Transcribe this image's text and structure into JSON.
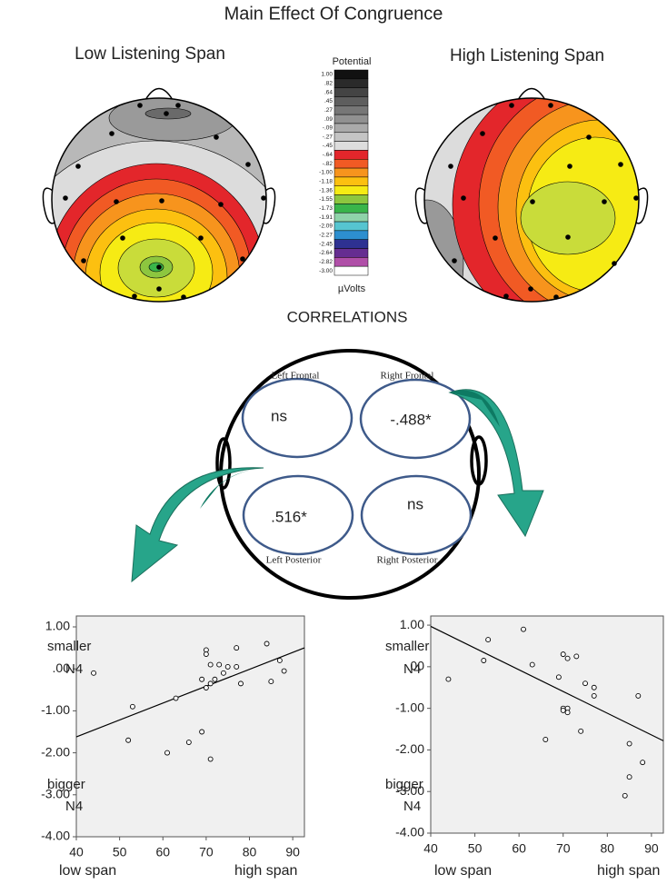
{
  "title": "Main Effect Of Congruence",
  "maps": {
    "left_title": "Low Listening Span",
    "right_title": "High Listening Span"
  },
  "diagram": {
    "title": "CORRELATIONS",
    "regions": [
      {
        "name": "Left Frontal",
        "value": "ns"
      },
      {
        "name": "Right Frontal",
        "value": "-.488*"
      },
      {
        "name": "Left Posterior",
        "value": ".516*"
      },
      {
        "name": "Right Posterior",
        "value": "ns"
      }
    ]
  },
  "chart_data": [
    {
      "type": "colorbar",
      "title": "Potential",
      "unit": "µVolts",
      "ticks": [
        {
          "value": 1,
          "label": "1.00"
        },
        {
          "value": 0.82,
          "label": ".82"
        },
        {
          "value": 0.64,
          "label": ".64"
        },
        {
          "value": 0.45,
          "label": ".45"
        },
        {
          "value": 0.27,
          "label": ".27"
        },
        {
          "value": 0.09,
          "label": ".09"
        },
        {
          "value": -0.09,
          "label": "-.09"
        },
        {
          "value": -0.27,
          "label": "-.27"
        },
        {
          "value": -0.45,
          "label": "-.45"
        },
        {
          "value": -0.64,
          "label": "-.64"
        },
        {
          "value": -0.82,
          "label": "-.82"
        },
        {
          "value": -1,
          "label": "-1.00"
        },
        {
          "value": -1.18,
          "label": "-1.18"
        },
        {
          "value": -1.36,
          "label": "-1.36"
        },
        {
          "value": -1.55,
          "label": "-1.55"
        },
        {
          "value": -1.73,
          "label": "-1.73"
        },
        {
          "value": -1.91,
          "label": "-1.91"
        },
        {
          "value": -2.09,
          "label": "-2.09"
        },
        {
          "value": -2.27,
          "label": "-2.27"
        },
        {
          "value": -2.45,
          "label": "-2.45"
        },
        {
          "value": -2.64,
          "label": "-2.64"
        },
        {
          "value": -2.82,
          "label": "-2.82"
        },
        {
          "value": -3,
          "label": "-3.00"
        }
      ],
      "colors": [
        "#111111",
        "#2a2a2a",
        "#444444",
        "#5e5e5e",
        "#777777",
        "#919191",
        "#aaaaaa",
        "#c4c4c4",
        "#dddddd",
        "#e3262b",
        "#f15a24",
        "#f7941d",
        "#fcc010",
        "#f6eb14",
        "#8dc63f",
        "#39b54a",
        "#8fd3a9",
        "#56c5d0",
        "#2d8fcf",
        "#2e3192",
        "#662d91",
        "#b04fa8",
        "#ffffff"
      ]
    },
    {
      "type": "scatter",
      "color": "#000000",
      "x": [
        44,
        52,
        53,
        61,
        63,
        66,
        69,
        69,
        70,
        70,
        70,
        71,
        71,
        71,
        72,
        73,
        74,
        75,
        77,
        77,
        78,
        84,
        85,
        87,
        88
      ],
      "y": [
        -0.1,
        -1.7,
        -0.9,
        -2.0,
        -0.7,
        -1.75,
        -1.5,
        -0.25,
        0.45,
        0.35,
        -0.45,
        0.1,
        -0.35,
        -2.15,
        -0.25,
        0.1,
        -0.1,
        0.05,
        0.5,
        0.05,
        -0.35,
        0.6,
        -0.3,
        0.2,
        -0.05
      ],
      "fit": {
        "x": [
          40,
          92.7
        ],
        "y": [
          -1.62,
          0.5
        ]
      },
      "xlim": [
        40,
        92.7
      ],
      "ylim": [
        -4,
        1.26
      ],
      "xticks": [
        40,
        50,
        60,
        70,
        80,
        90
      ],
      "yticks": [
        {
          "value": 1,
          "label": "1.00"
        },
        {
          "value": 0,
          "label": ".00"
        },
        {
          "value": -1,
          "label": "-1.00"
        },
        {
          "value": -2,
          "label": "-2.00"
        },
        {
          "value": -3,
          "label": "-3.00"
        },
        {
          "value": -4,
          "label": "-4.00"
        }
      ],
      "y_label_top": [
        "smaller",
        "N4"
      ],
      "y_label_bottom": [
        "bigger",
        "N4"
      ],
      "x_label_left": "low span",
      "x_label_right": "high span"
    },
    {
      "type": "scatter",
      "color": "#000000",
      "x": [
        44,
        52,
        53,
        61,
        63,
        66,
        69,
        70,
        70,
        70,
        71,
        71,
        71,
        73,
        74,
        75,
        77,
        77,
        84,
        85,
        85,
        87,
        88
      ],
      "y": [
        -0.3,
        0.15,
        0.65,
        0.9,
        0.05,
        -1.75,
        -0.25,
        0.3,
        -1.0,
        -1.05,
        -1.0,
        -1.1,
        0.2,
        0.25,
        -1.55,
        -0.4,
        -0.5,
        -0.7,
        -3.1,
        -1.85,
        -2.65,
        -0.7,
        -2.3
      ],
      "fit": {
        "x": [
          40,
          92.7
        ],
        "y": [
          0.97,
          -1.78
        ]
      },
      "xlim": [
        40,
        92.7
      ],
      "ylim": [
        -4,
        1.22
      ],
      "xticks": [
        40,
        50,
        60,
        70,
        80,
        90
      ],
      "yticks": [
        {
          "value": 1,
          "label": "1.00"
        },
        {
          "value": 0,
          "label": ".00"
        },
        {
          "value": -1,
          "label": "-1.00"
        },
        {
          "value": -2,
          "label": "-2.00"
        },
        {
          "value": -3,
          "label": "-3.00"
        },
        {
          "value": -4,
          "label": "-4.00"
        }
      ],
      "y_label_top": [
        "smaller",
        "N4"
      ],
      "y_label_bottom": [
        "bigger",
        "N4"
      ],
      "x_label_left": "low span",
      "x_label_right": "high span"
    }
  ]
}
